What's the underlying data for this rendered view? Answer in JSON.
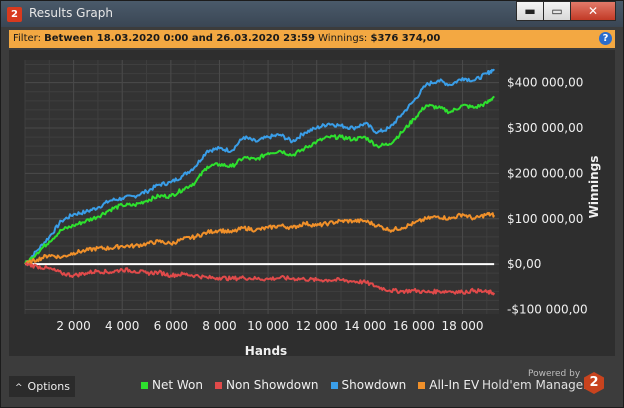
{
  "window": {
    "title": "Results Graph",
    "app_icon": "2",
    "buttons": {
      "minimize": "▬",
      "maximize": "▭",
      "close": "✕"
    }
  },
  "filter": {
    "label": "Filter:",
    "text": "Between 18.03.2020 0:00 and 26.03.2020 23:59",
    "winnings_label": "Winnings:",
    "winnings_value": "$376 374,00",
    "help": "?"
  },
  "options": {
    "label": "Options"
  },
  "powered": {
    "label": "Powered by",
    "brand": "Hold'em Manager",
    "logo": "2"
  },
  "colors": {
    "net_won": "#2ee02e",
    "non_showdown": "#e04a4a",
    "showdown": "#3a9ee8",
    "allin_ev": "#f0902a",
    "zero_line": "#ffffff"
  },
  "chart_data": {
    "type": "line",
    "xlabel": "Hands",
    "ylabel": "Winnings",
    "xlim": [
      0,
      19500
    ],
    "ylim": [
      -110000,
      450000
    ],
    "x_ticks": [
      2000,
      4000,
      6000,
      8000,
      10000,
      12000,
      14000,
      16000,
      18000
    ],
    "x_tick_labels": [
      "2 000",
      "4 000",
      "6 000",
      "8 000",
      "10 000",
      "12 000",
      "14 000",
      "16 000",
      "18 000"
    ],
    "y_ticks": [
      400000,
      300000,
      200000,
      100000,
      0,
      -100000
    ],
    "y_tick_labels": [
      "$400 000,00",
      "$300 000,00",
      "$200 000,00",
      "$100 000,00",
      "$0,00",
      "-$100 000,00"
    ],
    "series": [
      {
        "name": "Showdown",
        "x": [
          0,
          500,
          1000,
          1500,
          2000,
          2500,
          3000,
          3500,
          4000,
          4500,
          5000,
          5500,
          6000,
          6500,
          7000,
          7500,
          8000,
          8500,
          9000,
          9500,
          10000,
          10500,
          11000,
          11500,
          12000,
          12500,
          13000,
          13500,
          14000,
          14500,
          15000,
          15500,
          16000,
          16500,
          17000,
          17500,
          18000,
          18500,
          19000,
          19300
        ],
        "y": [
          0,
          30000,
          60000,
          95000,
          110000,
          115000,
          125000,
          140000,
          145000,
          150000,
          160000,
          175000,
          180000,
          195000,
          215000,
          250000,
          255000,
          250000,
          280000,
          270000,
          280000,
          285000,
          270000,
          290000,
          300000,
          310000,
          305000,
          300000,
          310000,
          290000,
          300000,
          330000,
          360000,
          395000,
          405000,
          395000,
          410000,
          405000,
          420000,
          430000
        ]
      },
      {
        "name": "Net Won",
        "x": [
          0,
          500,
          1000,
          1500,
          2000,
          2500,
          3000,
          3500,
          4000,
          4500,
          5000,
          5500,
          6000,
          6500,
          7000,
          7500,
          8000,
          8500,
          9000,
          9500,
          10000,
          10500,
          11000,
          11500,
          12000,
          12500,
          13000,
          13500,
          14000,
          14500,
          15000,
          15500,
          16000,
          16500,
          17000,
          17500,
          18000,
          18500,
          19000,
          19300
        ],
        "y": [
          0,
          25000,
          50000,
          75000,
          85000,
          95000,
          105000,
          120000,
          130000,
          130000,
          140000,
          150000,
          150000,
          165000,
          180000,
          215000,
          220000,
          215000,
          235000,
          230000,
          245000,
          250000,
          240000,
          255000,
          270000,
          280000,
          280000,
          275000,
          280000,
          260000,
          265000,
          290000,
          320000,
          350000,
          345000,
          335000,
          350000,
          345000,
          355000,
          370000
        ]
      },
      {
        "name": "All-In EV",
        "x": [
          0,
          500,
          1000,
          1500,
          2000,
          2500,
          3000,
          3500,
          4000,
          4500,
          5000,
          5500,
          6000,
          6500,
          7000,
          7500,
          8000,
          8500,
          9000,
          9500,
          10000,
          10500,
          11000,
          11500,
          12000,
          12500,
          13000,
          13500,
          14000,
          14500,
          15000,
          15500,
          16000,
          16500,
          17000,
          17500,
          18000,
          18500,
          19000,
          19300
        ],
        "y": [
          0,
          10000,
          20000,
          15000,
          25000,
          30000,
          35000,
          35000,
          40000,
          40000,
          45000,
          50000,
          45000,
          55000,
          60000,
          70000,
          75000,
          70000,
          80000,
          75000,
          80000,
          85000,
          80000,
          90000,
          85000,
          90000,
          95000,
          95000,
          95000,
          85000,
          75000,
          80000,
          90000,
          100000,
          105000,
          100000,
          110000,
          100000,
          110000,
          108000
        ]
      },
      {
        "name": "Non Showdown",
        "x": [
          0,
          500,
          1000,
          1500,
          2000,
          2500,
          3000,
          3500,
          4000,
          4500,
          5000,
          5500,
          6000,
          6500,
          7000,
          7500,
          8000,
          8500,
          9000,
          9500,
          10000,
          10500,
          11000,
          11500,
          12000,
          12500,
          13000,
          13500,
          14000,
          14500,
          15000,
          15500,
          16000,
          16500,
          17000,
          17500,
          18000,
          18500,
          19000,
          19300
        ],
        "y": [
          0,
          -5000,
          -10000,
          -20000,
          -25000,
          -20000,
          -15000,
          -18000,
          -12000,
          -15000,
          -20000,
          -18000,
          -25000,
          -22000,
          -25000,
          -30000,
          -30000,
          -32000,
          -30000,
          -32000,
          -33000,
          -30000,
          -32000,
          -33000,
          -35000,
          -35000,
          -35000,
          -38000,
          -40000,
          -50000,
          -58000,
          -60000,
          -58000,
          -62000,
          -60000,
          -60000,
          -62000,
          -58000,
          -62000,
          -63000
        ]
      }
    ]
  },
  "legend": [
    {
      "label": "Net Won",
      "color": "#2ee02e"
    },
    {
      "label": "Non Showdown",
      "color": "#e04a4a"
    },
    {
      "label": "Showdown",
      "color": "#3a9ee8"
    },
    {
      "label": "All-In EV",
      "color": "#f0902a"
    }
  ]
}
